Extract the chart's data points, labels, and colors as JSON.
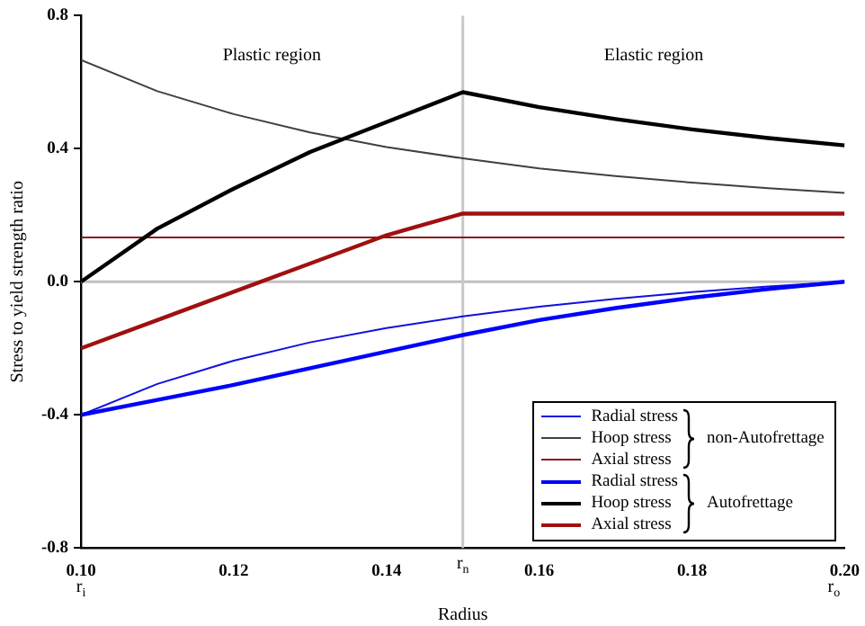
{
  "chart_data": {
    "type": "line",
    "xlabel": "Radius",
    "ylabel": "Stress to yield strength ratio",
    "xlim": [
      0.1,
      0.2
    ],
    "xticks": [
      {
        "value": 0.1,
        "label": "0.10"
      },
      0.12,
      0.14,
      0.16,
      0.18,
      {
        "value": 0.2,
        "label": "0.20"
      }
    ],
    "ylim": [
      -0.8,
      0.8
    ],
    "yticks": [
      -0.8,
      -0.4,
      {
        "value": 0,
        "label": "0.0"
      },
      0.4,
      0.8
    ],
    "x": [
      0.1,
      0.11,
      0.12,
      0.13,
      0.14,
      0.15,
      0.16,
      0.17,
      0.18,
      0.19,
      0.2
    ],
    "series": [
      {
        "name": "Radial stress",
        "color": "#1010e0",
        "values": [
          -0.4,
          -0.307,
          -0.237,
          -0.182,
          -0.139,
          -0.104,
          -0.075,
          -0.051,
          -0.031,
          -0.014,
          0
        ]
      },
      {
        "name": "Hoop stress",
        "color": "#404040",
        "values": [
          0.667,
          0.573,
          0.504,
          0.449,
          0.405,
          0.371,
          0.341,
          0.318,
          0.298,
          0.281,
          0.267
        ]
      },
      {
        "name": "Axial stress",
        "color": "#8b1a1a",
        "values": [
          0.133,
          0.133,
          0.133,
          0.133,
          0.133,
          0.133,
          0.133,
          0.133,
          0.133,
          0.133,
          0.133
        ]
      },
      {
        "name": "Radial stress",
        "color": "#0000ff",
        "values": [
          -0.4,
          -0.355,
          -0.31,
          -0.26,
          -0.21,
          -0.16,
          -0.115,
          -0.079,
          -0.048,
          -0.022,
          0
        ]
      },
      {
        "name": "Hoop stress",
        "color": "#000000",
        "values": [
          0,
          0.16,
          0.28,
          0.39,
          0.48,
          0.57,
          0.525,
          0.489,
          0.458,
          0.432,
          0.41
        ]
      },
      {
        "name": "Axial stress",
        "color": "#a01010",
        "values": [
          -0.2,
          -0.115,
          -0.03,
          0.055,
          0.14,
          0.205,
          0.205,
          0.205,
          0.205,
          0.205,
          0.205
        ]
      }
    ],
    "ref_lines": [
      {
        "axis": "y",
        "value": 0,
        "color": "#c0c0c0"
      },
      {
        "axis": "x",
        "value": 0.15,
        "label": "r$_{n}$",
        "color": "#c8c8c8"
      }
    ],
    "annotations": [
      "Plastic region",
      "Elastic region",
      "r$_{i}$",
      "r$_{o}$",
      "non-Autofrettage",
      "Autofrettage"
    ],
    "legend": "bottom right",
    "grid": false,
    "marker": "none",
    "line_style": "solid"
  }
}
